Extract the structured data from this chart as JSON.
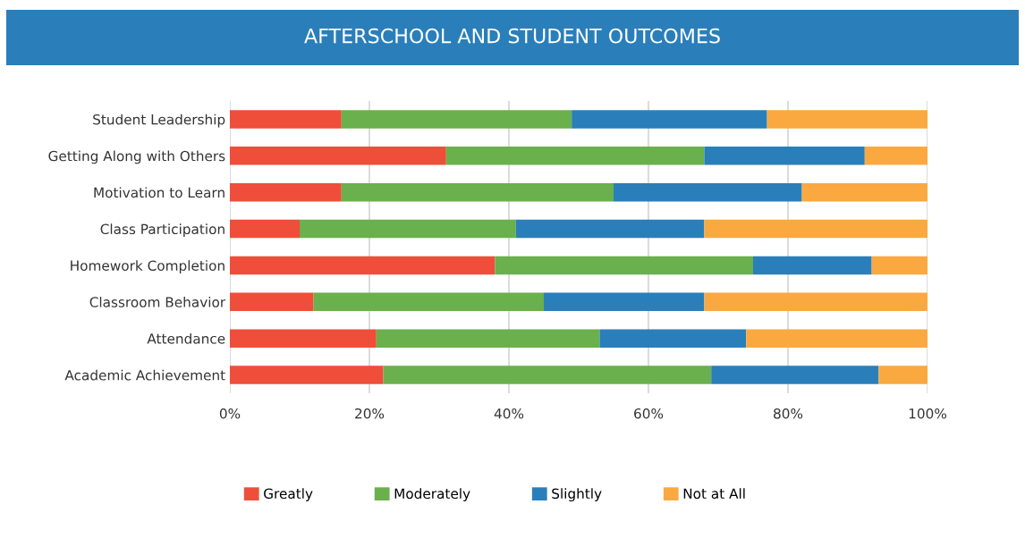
{
  "chart_data": {
    "type": "bar",
    "orientation": "horizontal",
    "stacked": true,
    "title": "AFTERSCHOOL AND STUDENT OUTCOMES",
    "categories": [
      "Student Leadership",
      "Getting Along with Others",
      "Motivation to Learn",
      "Class Participation",
      "Homework Completion",
      "Classroom Behavior",
      "Attendance",
      "Academic Achievement"
    ],
    "series": [
      {
        "name": "Greatly",
        "color": "#ef4e3a",
        "values": [
          16,
          31,
          16,
          10,
          38,
          12,
          21,
          22
        ]
      },
      {
        "name": "Moderately",
        "color": "#6ab04c",
        "values": [
          33,
          37,
          39,
          31,
          37,
          33,
          32,
          47
        ]
      },
      {
        "name": "Slightly",
        "color": "#2a7fba",
        "values": [
          28,
          23,
          27,
          27,
          17,
          23,
          21,
          24
        ]
      },
      {
        "name": "Not at All",
        "color": "#f9a940",
        "values": [
          23,
          9,
          18,
          32,
          8,
          32,
          26,
          7
        ]
      }
    ],
    "xlim": [
      0,
      100
    ],
    "xticks": [
      {
        "value": 0,
        "label": "0%"
      },
      {
        "value": 20,
        "label": "20%"
      },
      {
        "value": 40,
        "label": "40%"
      },
      {
        "value": 60,
        "label": "60%"
      },
      {
        "value": 80,
        "label": "80%"
      },
      {
        "value": 100,
        "label": "100%"
      }
    ],
    "grid": "x",
    "legend": "bottom"
  }
}
